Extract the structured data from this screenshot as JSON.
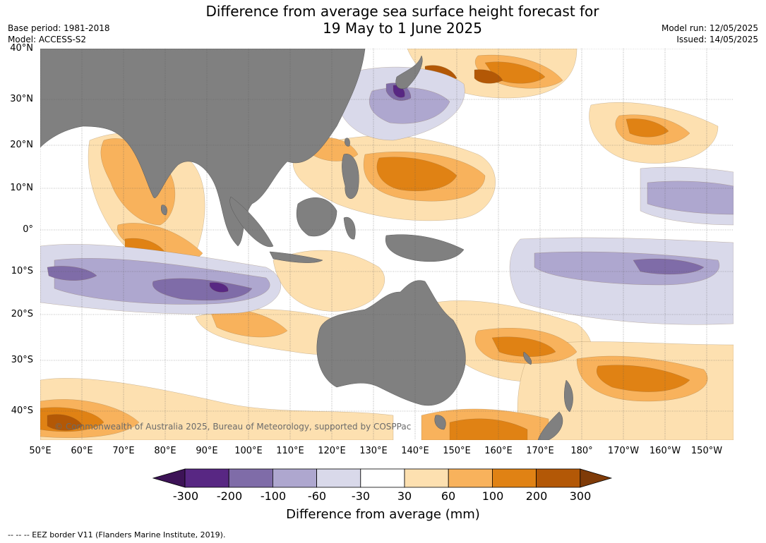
{
  "header": {
    "title_line1": "Difference from average sea surface height forecast for",
    "title_line2": "19 May to 1 June 2025",
    "base_period": "Base period: 1981-2018",
    "model": "Model: ACCESS-S2",
    "model_run": "Model run: 12/05/2025",
    "issued": "Issued: 14/05/2025"
  },
  "map": {
    "lat_labels": [
      "40°N",
      "30°N",
      "20°N",
      "10°N",
      "0°",
      "10°S",
      "20°S",
      "30°S",
      "40°S"
    ],
    "lon_labels": [
      "50°E",
      "60°E",
      "70°E",
      "80°E",
      "90°E",
      "100°E",
      "110°E",
      "120°E",
      "130°E",
      "140°E",
      "150°E",
      "160°E",
      "170°E",
      "180°",
      "170°W",
      "160°W",
      "150°W"
    ],
    "copyright": "© Commonwealth of Australia 2025, Bureau of Meteorology, supported by COSPPac",
    "land_color": "#808080",
    "ocean_color": "#ffffff"
  },
  "colorbar": {
    "ticks": [
      "-300",
      "-200",
      "-100",
      "-60",
      "-30",
      "30",
      "60",
      "100",
      "200",
      "300"
    ],
    "colors": [
      "#3d1357",
      "#582783",
      "#7f6ca8",
      "#aea7cf",
      "#d9d9ea",
      "#ffffff",
      "#fde0b0",
      "#f8b25c",
      "#e08214",
      "#b35806",
      "#7f3b08"
    ],
    "label": "Difference from average (mm)"
  },
  "footer": "--  --  -- EEZ border V11 (Flanders Marine Institute, 2019)."
}
